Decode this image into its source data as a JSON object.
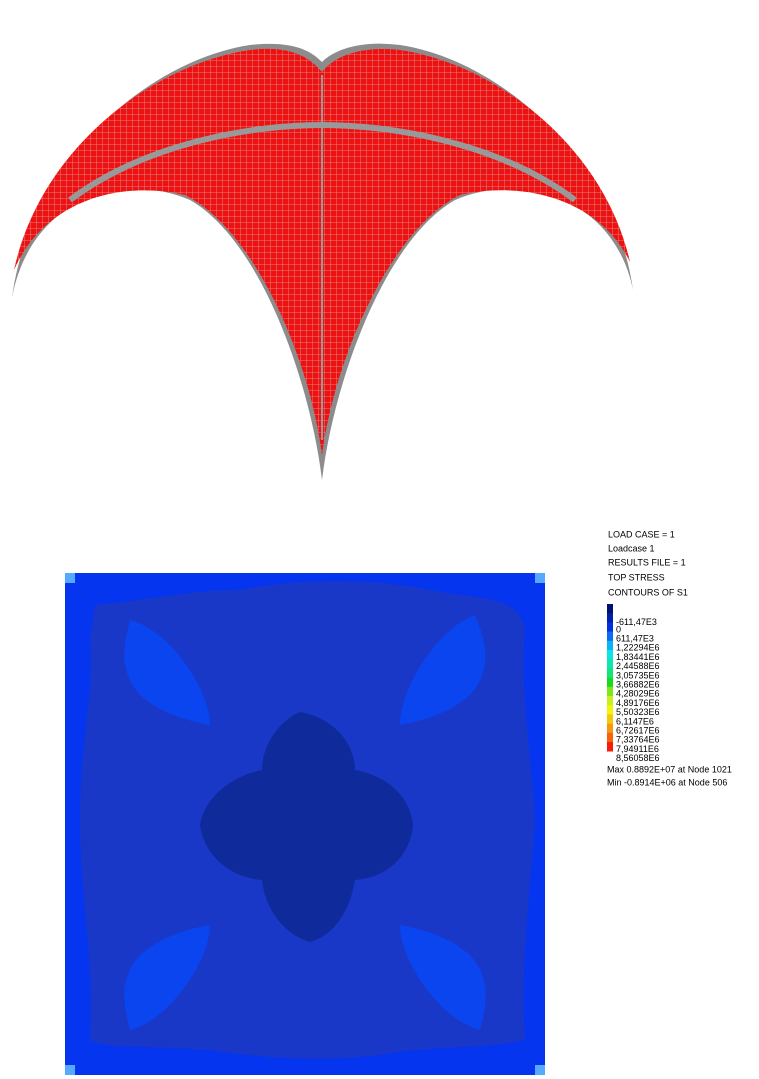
{
  "legend": {
    "header": [
      "LOAD CASE  =     1",
      "Loadcase 1",
      "RESULTS FILE =     1",
      "TOP STRESS",
      "CONTOURS OF S1"
    ],
    "colors": [
      "#00126e",
      "#0020a8",
      "#0030e0",
      "#0a6cf5",
      "#0ab4f5",
      "#0ae6e6",
      "#10e6b0",
      "#10e67a",
      "#16dc1e",
      "#7ee61a",
      "#c8f01a",
      "#f5f50a",
      "#f5c80a",
      "#f59a0a",
      "#f5640a",
      "#f51e0a"
    ],
    "labels": [
      "-611,47E3",
      "0",
      "611,47E3",
      "1,22294E6",
      "1,83441E6",
      "2,44588E6",
      "3,05735E6",
      "3,66882E6",
      "4,28029E6",
      "4,89176E6",
      "5,50323E6",
      "6,1147E6",
      "6,72617E6",
      "7,33764E6",
      "7,94911E6",
      "8,56058E6"
    ],
    "extrema": [
      "Max 0.8892E+07 at Node 1021",
      "Min -0.8914E+06 at Node 506"
    ]
  }
}
